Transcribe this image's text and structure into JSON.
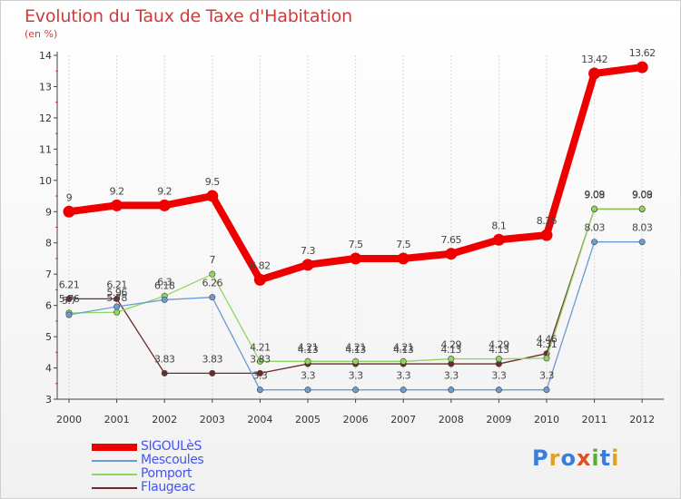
{
  "title": "Evolution du Taux de Taxe d'Habitation",
  "subtitle": "(en %)",
  "logo_text": "Proxiti",
  "colors": {
    "title": "#cc3c3c",
    "legend_text": "#4455ee",
    "grid": "#d8d8d8",
    "axis": "#444444"
  },
  "chart_data": {
    "type": "line",
    "x": [
      "2000",
      "2001",
      "2002",
      "2003",
      "2004",
      "2005",
      "2006",
      "2007",
      "2008",
      "2009",
      "2010",
      "2011",
      "2012"
    ],
    "ylim": [
      3,
      14
    ],
    "yticks": [
      "3",
      "4",
      "5",
      "6",
      "7",
      "8",
      "9",
      "10",
      "11",
      "12",
      "13",
      "14"
    ],
    "grid": "vertical",
    "legend_position": "bottom-left",
    "series": [
      {
        "name": "SIGOULèS",
        "color": "#ee0000",
        "values": [
          9,
          9.2,
          9.2,
          9.5,
          6.82,
          7.3,
          7.5,
          7.5,
          7.65,
          8.1,
          8.25,
          13.42,
          13.62
        ],
        "labels": [
          "9",
          "9.2",
          "9.2",
          "9.5",
          "6.82",
          "7.3",
          "7.5",
          "7.5",
          "7.65",
          "8.1",
          "8.25",
          "13.42",
          "13.62"
        ]
      },
      {
        "name": "Mescoules",
        "color": "#6a9bd1",
        "values": [
          5.7,
          5.96,
          6.18,
          6.26,
          3.3,
          3.3,
          3.3,
          3.3,
          3.3,
          3.3,
          3.3,
          8.03,
          8.03
        ],
        "labels": [
          "5.7",
          "5.96",
          "6.18",
          "6.26",
          "3.3",
          "3.3",
          "3.3",
          "3.3",
          "3.3",
          "3.3",
          "3.3",
          "8.03",
          "8.03"
        ]
      },
      {
        "name": "Pomport",
        "color": "#8fd660",
        "values": [
          5.76,
          5.78,
          6.3,
          7,
          4.21,
          4.21,
          4.21,
          4.21,
          4.29,
          4.29,
          4.31,
          9.09,
          9.09
        ],
        "labels": [
          "5.76",
          "5.78",
          "6.3",
          "7",
          "4.21",
          "4.21",
          "4.21",
          "4.21",
          "4.29",
          "4.29",
          "4.31",
          "9.09",
          "9.09"
        ]
      },
      {
        "name": "Flaugeac",
        "color": "#6e2b2b",
        "values": [
          6.21,
          6.21,
          3.83,
          3.83,
          3.83,
          4.13,
          4.13,
          4.13,
          4.13,
          4.13,
          4.46,
          9.08,
          9.08
        ],
        "labels": [
          "6.21",
          "6.21",
          "3.83",
          "3.83",
          "3.83",
          "4.13",
          "4.13",
          "4.13",
          "4.13",
          "4.13",
          "4.46",
          "9.08",
          "9.08"
        ]
      }
    ]
  }
}
